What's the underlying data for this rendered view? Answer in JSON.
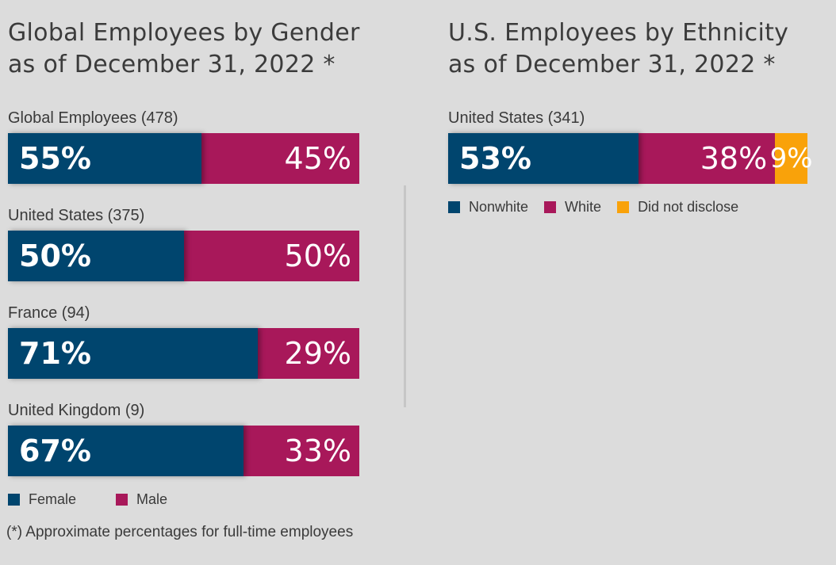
{
  "gender_title": {
    "line1": "Global Employees by Gender",
    "line2": "as of December 31, 2022 *"
  },
  "ethnicity_title": {
    "line1": "U.S. Employees by Ethnicity",
    "line2": "as of December 31, 2022 *"
  },
  "colors": {
    "female": "#00456e",
    "male": "#a8185a",
    "nonwhite": "#00456e",
    "white": "#a8185a",
    "did_not_disclose": "#f9a20a"
  },
  "chart_data": [
    {
      "type": "bar",
      "orientation": "horizontal",
      "stacked": true,
      "title": "Global Employees by Gender as of December 31, 2022 *",
      "categories": [
        "Global Employees (478)",
        "United States (375)",
        "France (94)",
        "United Kingdom (9)"
      ],
      "series": [
        {
          "name": "Female",
          "values": [
            55,
            50,
            71,
            67
          ],
          "labels": [
            "55%",
            "50%",
            "71%",
            "67%"
          ]
        },
        {
          "name": "Male",
          "values": [
            45,
            50,
            29,
            33
          ],
          "labels": [
            "45%",
            "50%",
            "29%",
            "33%"
          ]
        }
      ],
      "xlim": [
        0,
        100
      ],
      "legend": [
        "Female",
        "Male"
      ],
      "legend_position": "bottom-left"
    },
    {
      "type": "bar",
      "orientation": "horizontal",
      "stacked": true,
      "title": "U.S. Employees by Ethnicity as of December 31, 2022 *",
      "categories": [
        "United States (341)"
      ],
      "series": [
        {
          "name": "Nonwhite",
          "values": [
            53
          ],
          "labels": [
            "53%"
          ]
        },
        {
          "name": "White",
          "values": [
            38
          ],
          "labels": [
            "38%"
          ]
        },
        {
          "name": "Did not disclose",
          "values": [
            9
          ],
          "labels": [
            "9%"
          ]
        }
      ],
      "xlim": [
        0,
        100
      ],
      "legend": [
        "Nonwhite",
        "White",
        "Did not disclose"
      ],
      "legend_position": "below-bar"
    }
  ],
  "footnote": "(*) Approximate percentages for full-time employees"
}
